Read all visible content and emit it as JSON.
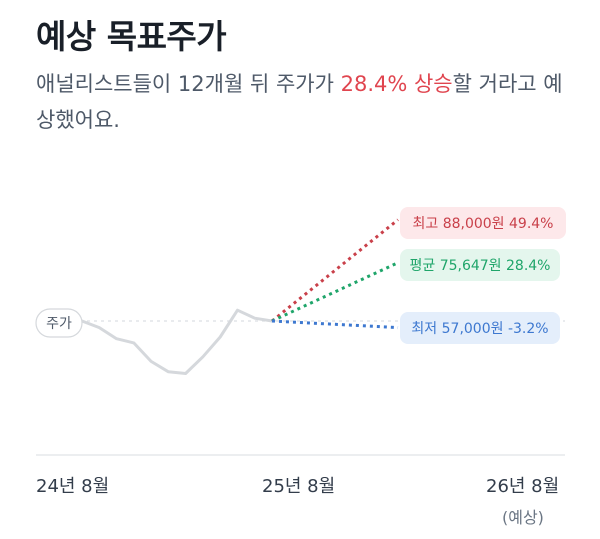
{
  "header": {
    "title": "예상 목표주가",
    "desc_before": "애널리스트들이 12개월 뒤 주가가 ",
    "desc_highlight": "28.4% 상승",
    "desc_after": "할 거라고 예상했어요."
  },
  "colors": {
    "price_line": "#d5d8dc",
    "high": "#c9404a",
    "avg": "#1fa56a",
    "low": "#3d78d0",
    "high_bg": "#fde8ea",
    "avg_bg": "#e4f6ed",
    "low_bg": "#e4eefb",
    "highlight_text": "#e0454f"
  },
  "chart_data": {
    "type": "line",
    "price_tag": "주가",
    "x_ticks": [
      {
        "label": "24년 8월",
        "sub": ""
      },
      {
        "label": "25년 8월",
        "sub": ""
      },
      {
        "label": "26년 8월",
        "sub": "(예상)"
      }
    ],
    "price_series": [
      {
        "date": "2024-08",
        "value": 58900
      },
      {
        "date": "2024-09",
        "value": 57000
      },
      {
        "date": "2024-10",
        "value": 53800
      },
      {
        "date": "2024-11",
        "value": 52600
      },
      {
        "date": "2024-12",
        "value": 47300
      },
      {
        "date": "2025-01",
        "value": 44300
      },
      {
        "date": "2025-02",
        "value": 43800
      },
      {
        "date": "2025-03",
        "value": 48600
      },
      {
        "date": "2025-04",
        "value": 54300
      },
      {
        "date": "2025-05",
        "value": 62000
      },
      {
        "date": "2025-06",
        "value": 59700
      },
      {
        "date": "2025-07",
        "value": 58900
      }
    ],
    "targets": [
      {
        "key": "high",
        "label": "최고 88,000원 49.4%",
        "date": "2026-08",
        "value": 88000
      },
      {
        "key": "avg",
        "label": "평균 75,647원 28.4%",
        "date": "2026-08",
        "value": 75647
      },
      {
        "key": "low",
        "label": "최저 57,000원 -3.2%",
        "date": "2026-08",
        "value": 57000
      }
    ],
    "reference_line_value": 58900,
    "grid": false
  }
}
